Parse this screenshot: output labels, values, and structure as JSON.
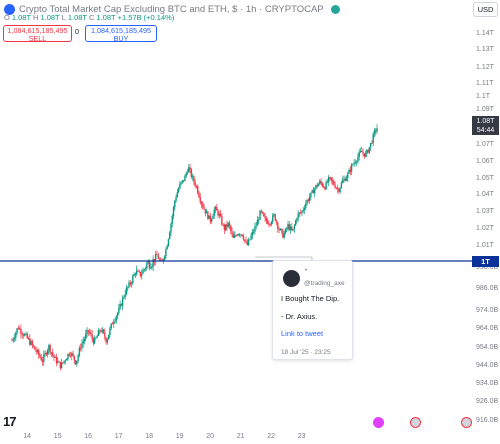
{
  "header": {
    "title": "Crypto Total Market Cap Excluding BTC and ETH, $ · 1h · CRYPTOCAP",
    "ohlc": {
      "o_label": "O",
      "o": "1.08T",
      "h_label": "H",
      "h": "1.08T",
      "l_label": "L",
      "l": "1.08T",
      "c_label": "C",
      "c": "1.08T",
      "change": "+1.57B (+0.14%)"
    },
    "sell": {
      "value": "1,084,615,185,495",
      "label": "SELL"
    },
    "buy": {
      "value": "1,084,615,185,495",
      "label": "BUY"
    },
    "spread": "0",
    "currency": "USD"
  },
  "price_axis": {
    "labels": [
      "1.14T",
      "1.13T",
      "1.12T",
      "1.11T",
      "1.1T",
      "1.09T",
      "1.08T",
      "1.07T",
      "1.06T",
      "1.05T",
      "1.04T",
      "1.03T",
      "1.02T",
      "1.01T",
      "1T",
      "998.0B",
      "986.0B",
      "974.0B",
      "964.0B",
      "954.0B",
      "944.0B",
      "934.0B",
      "926.0B",
      "916.0B"
    ],
    "last_price": "1.08T",
    "countdown": "54:44",
    "line_label": "1T"
  },
  "time_axis": {
    "labels": [
      "14",
      "15",
      "16",
      "17",
      "18",
      "19",
      "20",
      "21",
      "22",
      "23"
    ]
  },
  "tweet": {
    "handle": "@trading_axe",
    "dot": "•",
    "line1": "I Bought The Dip.",
    "line2": "- Dr. Axius.",
    "link": "Link to tweet",
    "date": "18 Jul '25 · 23:25"
  },
  "colors": {
    "up": "#089981",
    "down": "#f23645",
    "line": "#0c3299",
    "accent": "#2962ff"
  },
  "logo": "17",
  "chart_data": {
    "type": "candlestick",
    "title": "Crypto Total Market Cap Excluding BTC and ETH, $ · 1h · CRYPTOCAP",
    "x_labels": [
      "14",
      "15",
      "16",
      "17",
      "18",
      "19",
      "20",
      "21",
      "22",
      "23"
    ],
    "y_range_T": [
      0.916,
      1.14
    ],
    "horizontal_line_T": 1.0,
    "last_close_T": 1.08,
    "path_T": [
      [
        0.0,
        0.958
      ],
      [
        0.2,
        0.965
      ],
      [
        0.35,
        0.962
      ],
      [
        0.55,
        0.958
      ],
      [
        0.8,
        0.952
      ],
      [
        1.0,
        0.947
      ],
      [
        1.2,
        0.955
      ],
      [
        1.4,
        0.948
      ],
      [
        1.6,
        0.944
      ],
      [
        1.9,
        0.952
      ],
      [
        2.1,
        0.946
      ],
      [
        2.25,
        0.955
      ],
      [
        2.5,
        0.963
      ],
      [
        2.7,
        0.957
      ],
      [
        2.9,
        0.964
      ],
      [
        3.1,
        0.958
      ],
      [
        3.3,
        0.968
      ],
      [
        3.5,
        0.974
      ],
      [
        3.7,
        0.984
      ],
      [
        3.9,
        0.99
      ],
      [
        4.05,
        0.996
      ],
      [
        4.2,
        0.994
      ],
      [
        4.4,
        0.999
      ],
      [
        4.6,
        1.0
      ],
      [
        4.75,
        1.004
      ],
      [
        4.9,
        0.998
      ],
      [
        5.05,
        1.008
      ],
      [
        5.2,
        1.022
      ],
      [
        5.35,
        1.038
      ],
      [
        5.5,
        1.046
      ],
      [
        5.65,
        1.05
      ],
      [
        5.78,
        1.057
      ],
      [
        5.9,
        1.051
      ],
      [
        6.05,
        1.045
      ],
      [
        6.2,
        1.036
      ],
      [
        6.35,
        1.03
      ],
      [
        6.5,
        1.025
      ],
      [
        6.65,
        1.032
      ],
      [
        6.8,
        1.028
      ],
      [
        6.95,
        1.02
      ],
      [
        7.1,
        1.023
      ],
      [
        7.25,
        1.014
      ],
      [
        7.4,
        1.018
      ],
      [
        7.55,
        1.017
      ],
      [
        7.7,
        1.01
      ],
      [
        7.85,
        1.016
      ],
      [
        8.0,
        1.022
      ],
      [
        8.15,
        1.03
      ],
      [
        8.3,
        1.025
      ],
      [
        8.45,
        1.024
      ],
      [
        8.6,
        1.028
      ],
      [
        8.75,
        1.02
      ],
      [
        8.9,
        1.016
      ],
      [
        9.05,
        1.022
      ],
      [
        9.2,
        1.018
      ],
      [
        9.35,
        1.028
      ],
      [
        9.5,
        1.03
      ],
      [
        9.65,
        1.036
      ],
      [
        9.8,
        1.04
      ],
      [
        9.95,
        1.045
      ],
      [
        10.1,
        1.048
      ],
      [
        10.25,
        1.045
      ],
      [
        10.4,
        1.05
      ],
      [
        10.55,
        1.047
      ],
      [
        10.7,
        1.043
      ],
      [
        10.85,
        1.049
      ],
      [
        11.0,
        1.052
      ],
      [
        11.15,
        1.058
      ],
      [
        11.3,
        1.062
      ],
      [
        11.45,
        1.066
      ],
      [
        11.6,
        1.064
      ],
      [
        11.75,
        1.07
      ],
      [
        11.9,
        1.078
      ],
      [
        12.0,
        1.081
      ]
    ]
  }
}
